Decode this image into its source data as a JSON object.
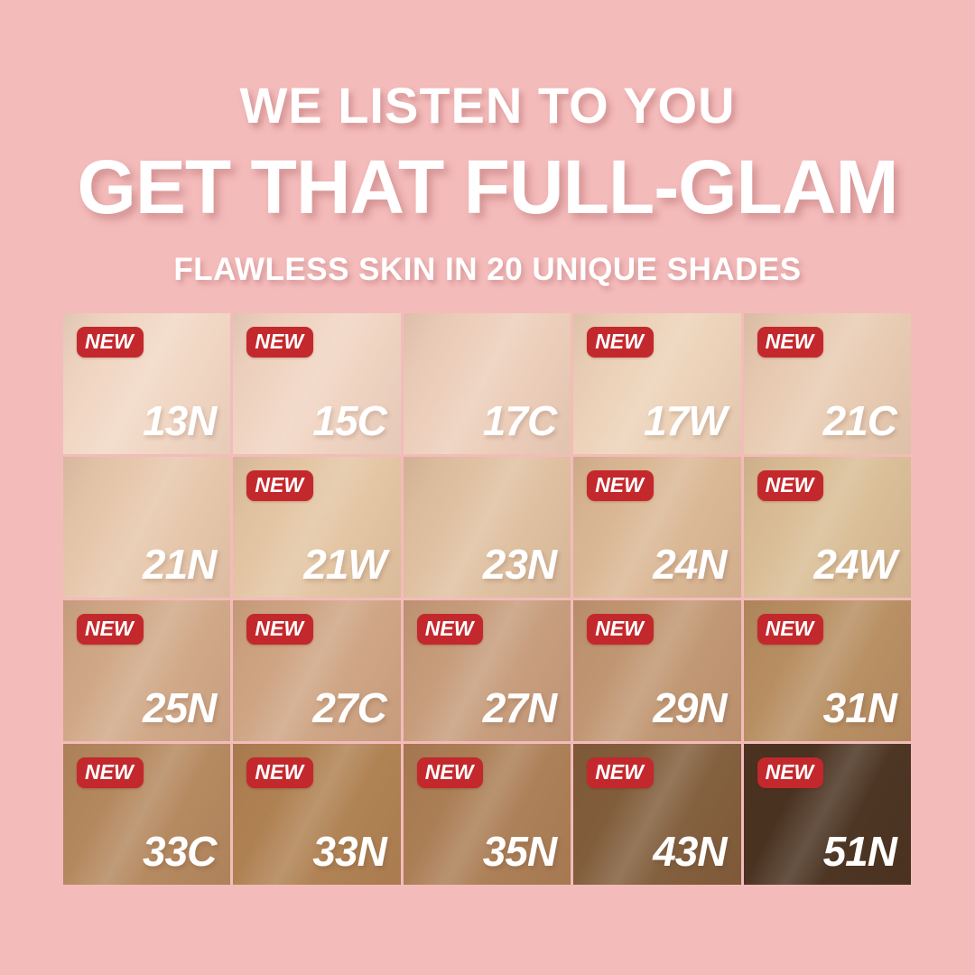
{
  "page": {
    "background_color": "#F4BBBB"
  },
  "header": {
    "line1": "WE LISTEN TO YOU",
    "line2": "GET THAT FULL-GLAM",
    "line3": "FLAWLESS SKIN IN 20 UNIQUE SHADES",
    "text_color": "#FFFFFF"
  },
  "badge": {
    "label": "NEW",
    "background": "#C3282D",
    "text_color": "#FFFFFF"
  },
  "grid": {
    "rows": 4,
    "cols": 5,
    "shades": [
      {
        "code": "13N",
        "color": "#F1D7C4",
        "new": true
      },
      {
        "code": "15C",
        "color": "#F0D4C2",
        "new": true
      },
      {
        "code": "17C",
        "color": "#ECCEBA",
        "new": false
      },
      {
        "code": "17W",
        "color": "#ECD2B8",
        "new": true
      },
      {
        "code": "21C",
        "color": "#E8CBB2",
        "new": true
      },
      {
        "code": "21N",
        "color": "#E6C7AB",
        "new": false
      },
      {
        "code": "21W",
        "color": "#E3C5A3",
        "new": true
      },
      {
        "code": "23N",
        "color": "#DFC0A0",
        "new": false
      },
      {
        "code": "24N",
        "color": "#DAB794",
        "new": true
      },
      {
        "code": "24W",
        "color": "#D9BD95",
        "new": true
      },
      {
        "code": "25N",
        "color": "#D0A887",
        "new": true
      },
      {
        "code": "27C",
        "color": "#CEA483",
        "new": true
      },
      {
        "code": "27N",
        "color": "#C69C7B",
        "new": true
      },
      {
        "code": "29N",
        "color": "#C09672",
        "new": true
      },
      {
        "code": "31N",
        "color": "#B78E61",
        "new": true
      },
      {
        "code": "33C",
        "color": "#B4885E",
        "new": true
      },
      {
        "code": "33N",
        "color": "#AF8152",
        "new": true
      },
      {
        "code": "35N",
        "color": "#AB7E55",
        "new": true
      },
      {
        "code": "43N",
        "color": "#815D3B",
        "new": true
      },
      {
        "code": "51N",
        "color": "#4A3220",
        "new": true
      }
    ]
  }
}
